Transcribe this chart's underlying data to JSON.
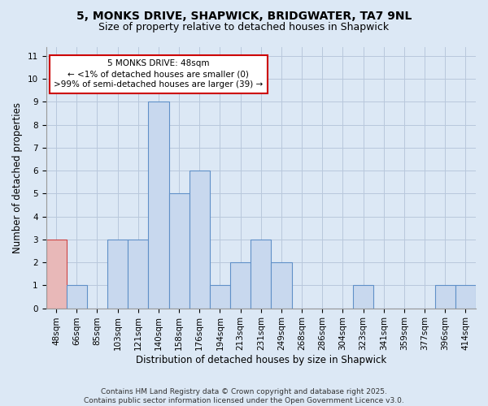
{
  "title_line1": "5, MONKS DRIVE, SHAPWICK, BRIDGWATER, TA7 9NL",
  "title_line2": "Size of property relative to detached houses in Shapwick",
  "xlabel": "Distribution of detached houses by size in Shapwick",
  "ylabel": "Number of detached properties",
  "categories": [
    "48sqm",
    "66sqm",
    "85sqm",
    "103sqm",
    "121sqm",
    "140sqm",
    "158sqm",
    "176sqm",
    "194sqm",
    "213sqm",
    "231sqm",
    "249sqm",
    "268sqm",
    "286sqm",
    "304sqm",
    "323sqm",
    "341sqm",
    "359sqm",
    "377sqm",
    "396sqm",
    "414sqm"
  ],
  "values": [
    3,
    1,
    0,
    3,
    3,
    9,
    5,
    6,
    1,
    2,
    3,
    2,
    0,
    0,
    0,
    1,
    0,
    0,
    0,
    1,
    1
  ],
  "bar_color": "#c8d8ee",
  "bar_edge_color": "#6090c8",
  "highlight_index": 0,
  "highlight_bar_color": "#e8b8b8",
  "highlight_edge_color": "#cc4444",
  "annotation_box_text_line1": "5 MONKS DRIVE: 48sqm",
  "annotation_box_text_line2": "← <1% of detached houses are smaller (0)",
  "annotation_box_text_line3": ">99% of semi-detached houses are larger (39) →",
  "annotation_box_color": "#ffffff",
  "annotation_box_edge_color": "#cc0000",
  "ylim": [
    0,
    11.4
  ],
  "yticks": [
    0,
    1,
    2,
    3,
    4,
    5,
    6,
    7,
    8,
    9,
    10,
    11
  ],
  "grid_color": "#b8c8dc",
  "background_color": "#dce8f5",
  "plot_background_color": "#dce8f5",
  "footer_text": "Contains HM Land Registry data © Crown copyright and database right 2025.\nContains public sector information licensed under the Open Government Licence v3.0.",
  "title_fontsize": 10,
  "subtitle_fontsize": 9,
  "axis_label_fontsize": 8.5,
  "tick_fontsize": 7.5,
  "annotation_fontsize": 7.5,
  "footer_fontsize": 6.5
}
